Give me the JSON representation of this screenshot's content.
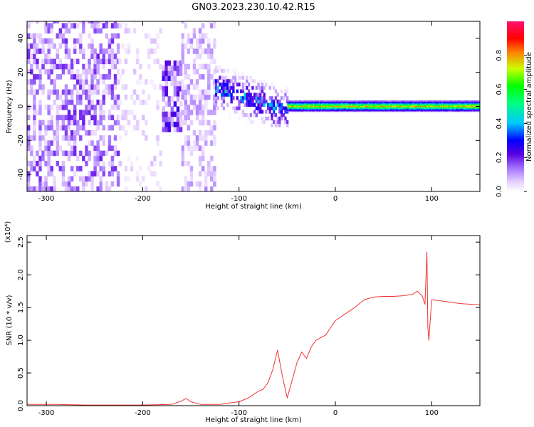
{
  "figure": {
    "title": "GN03.2023.230.10.42.R15"
  },
  "colors": {
    "snr_line": "#ee3333",
    "background": "#ffffff",
    "axes": "#000000",
    "colormap": [
      "#ffffff",
      "#e4ccff",
      "#a070ff",
      "#5a00e0",
      "#0000ff",
      "#00c8ff",
      "#00ff80",
      "#00ff00",
      "#c8ff00",
      "#ff8000",
      "#ff0000",
      "#ff1070"
    ]
  },
  "chart_data": [
    {
      "type": "heatmap",
      "title": "GN03.2023.230.10.42.R15",
      "xlabel": "Height of straight line (km)",
      "ylabel": "Frequency (Hz)",
      "xlim": [
        -320,
        150
      ],
      "ylim": [
        -50,
        50
      ],
      "x_ticks": [
        -300,
        -200,
        -100,
        0,
        100
      ],
      "y_ticks": [
        -40,
        -20,
        0,
        20,
        40
      ],
      "colorbar": {
        "label": "Normalized spectral amplitude",
        "range": [
          0.0,
          1.0
        ],
        "ticks": [
          0.0,
          0.2,
          0.4,
          0.6,
          0.8
        ]
      },
      "regions": [
        {
          "x_range": [
            -320,
            -225
          ],
          "freq_range": [
            -50,
            50
          ],
          "amplitude": 0.12,
          "pattern": "noise"
        },
        {
          "x_range": [
            -225,
            -180
          ],
          "freq_range": [
            -50,
            50
          ],
          "amplitude": 0.05,
          "pattern": "sparse noise"
        },
        {
          "x_range": [
            -180,
            -160
          ],
          "freq_range": [
            -15,
            25
          ],
          "amplitude": 0.15,
          "pattern": "blob"
        },
        {
          "x_range": [
            -160,
            -125
          ],
          "freq_range": [
            -50,
            50
          ],
          "amplitude": 0.08,
          "pattern": "noise"
        },
        {
          "x_range": [
            -125,
            -50
          ],
          "freq_range": [
            -12,
            25
          ],
          "amplitude": 0.3,
          "pattern": "descending blob"
        },
        {
          "x_range": [
            -50,
            150
          ],
          "freq_range": [
            -3,
            3
          ],
          "amplitude": 0.75,
          "pattern": "narrow band at 0 Hz"
        }
      ]
    },
    {
      "type": "line",
      "xlabel": "Height of straight line (km)",
      "ylabel": "SNR (10 * v/v)",
      "y_multiplier": "(x10⁴)",
      "xlim": [
        -320,
        150
      ],
      "ylim": [
        0,
        2.6
      ],
      "x_ticks": [
        -300,
        -200,
        -100,
        0,
        100
      ],
      "y_ticks": [
        0.0,
        0.5,
        1.0,
        1.5,
        2.0,
        2.5
      ],
      "series": [
        {
          "x": [
            -320,
            -290,
            -260,
            -230,
            -200,
            -170,
            -160,
            -155,
            -150,
            -140,
            -120,
            -110,
            -100,
            -90,
            -80,
            -75,
            -70,
            -65,
            -60,
            -55,
            -50,
            -45,
            -40,
            -35,
            -30,
            -25,
            -20,
            -10,
            0,
            10,
            20,
            30,
            40,
            50,
            60,
            70,
            80,
            85,
            90,
            93,
            95,
            96,
            97,
            100,
            110,
            120,
            130,
            140,
            150
          ],
          "y": [
            0.02,
            0.02,
            0.01,
            0.01,
            0.01,
            0.02,
            0.07,
            0.11,
            0.06,
            0.02,
            0.02,
            0.04,
            0.06,
            0.12,
            0.22,
            0.25,
            0.35,
            0.55,
            0.85,
            0.45,
            0.12,
            0.38,
            0.65,
            0.82,
            0.72,
            0.9,
            1.0,
            1.08,
            1.3,
            1.4,
            1.5,
            1.62,
            1.66,
            1.67,
            1.67,
            1.68,
            1.7,
            1.75,
            1.68,
            1.55,
            2.35,
            1.2,
            1.0,
            1.62,
            1.6,
            1.58,
            1.56,
            1.55,
            1.54
          ]
        }
      ]
    }
  ]
}
